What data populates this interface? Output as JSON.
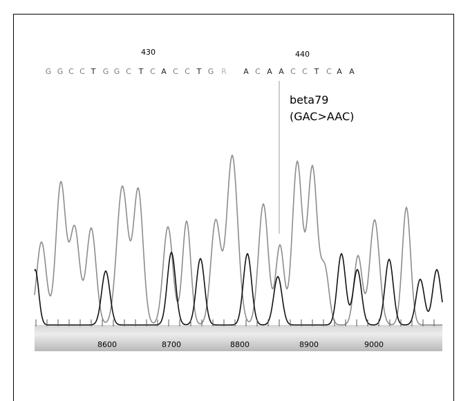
{
  "position_labels": [
    {
      "text": "430"
    },
    {
      "text": "440"
    }
  ],
  "sequence": [
    {
      "base": "G",
      "tone": "gray"
    },
    {
      "base": "G",
      "tone": "gray"
    },
    {
      "base": "C",
      "tone": "gray"
    },
    {
      "base": "C",
      "tone": "gray"
    },
    {
      "base": "T",
      "tone": "dark"
    },
    {
      "base": "G",
      "tone": "gray"
    },
    {
      "base": "G",
      "tone": "gray"
    },
    {
      "base": "C",
      "tone": "gray"
    },
    {
      "base": "T",
      "tone": "dark"
    },
    {
      "base": "C",
      "tone": "gray"
    },
    {
      "base": "A",
      "tone": "dark"
    },
    {
      "base": "C",
      "tone": "gray"
    },
    {
      "base": "C",
      "tone": "gray"
    },
    {
      "base": "T",
      "tone": "dark"
    },
    {
      "base": "G",
      "tone": "gray"
    },
    {
      "base": "R",
      "tone": "light"
    },
    {
      "base": "A",
      "tone": "dark"
    },
    {
      "base": "C",
      "tone": "gray"
    },
    {
      "base": "A",
      "tone": "dark"
    },
    {
      "base": "A",
      "tone": "dark"
    },
    {
      "base": "C",
      "tone": "gray"
    },
    {
      "base": "C",
      "tone": "gray"
    },
    {
      "base": "T",
      "tone": "dark"
    },
    {
      "base": "C",
      "tone": "gray"
    },
    {
      "base": "A",
      "tone": "dark"
    },
    {
      "base": "A",
      "tone": "dark"
    }
  ],
  "annotation": {
    "line1": "beta79",
    "line2": "(GAC>AAC)"
  },
  "axis_ticks": [
    "8600",
    "8700",
    "8800",
    "8900",
    "9000"
  ],
  "colors": {
    "dark": "#222222",
    "gray": "#7a7a7a",
    "light": "#b5b5b5",
    "trace_light": "#8c8c8c",
    "trace_dark": "#111111"
  }
}
